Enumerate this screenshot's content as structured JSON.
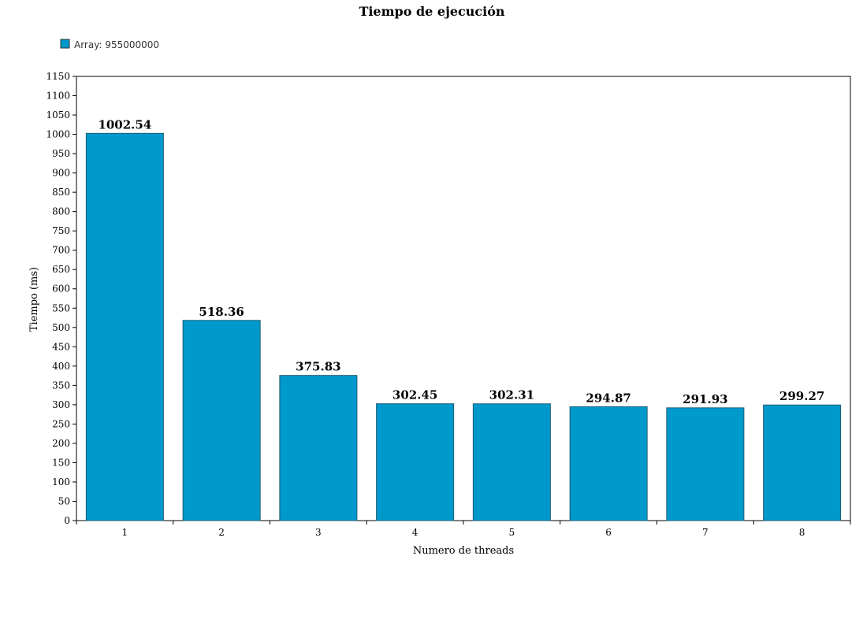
{
  "chart_data": {
    "type": "bar",
    "title": "Tiempo de ejecución",
    "xlabel": "Numero de threads",
    "ylabel": "Tiempo (ms)",
    "categories": [
      "1",
      "2",
      "3",
      "4",
      "5",
      "6",
      "7",
      "8"
    ],
    "series": [
      {
        "name": "Array: 955000000",
        "values": [
          1002.54,
          518.36,
          375.83,
          302.45,
          302.31,
          294.87,
          291.93,
          299.27
        ],
        "color": "#0099cc"
      }
    ],
    "data_labels": [
      "1002.54",
      "518.36",
      "375.83",
      "302.45",
      "302.31",
      "294.87",
      "291.93",
      "299.27"
    ],
    "ylim": [
      0,
      1150
    ],
    "yticks": [
      0,
      50,
      100,
      150,
      200,
      250,
      300,
      350,
      400,
      450,
      500,
      550,
      600,
      650,
      700,
      750,
      800,
      850,
      900,
      950,
      1000,
      1050,
      1100,
      1150
    ],
    "grid": false,
    "legend_position": "top-left"
  }
}
